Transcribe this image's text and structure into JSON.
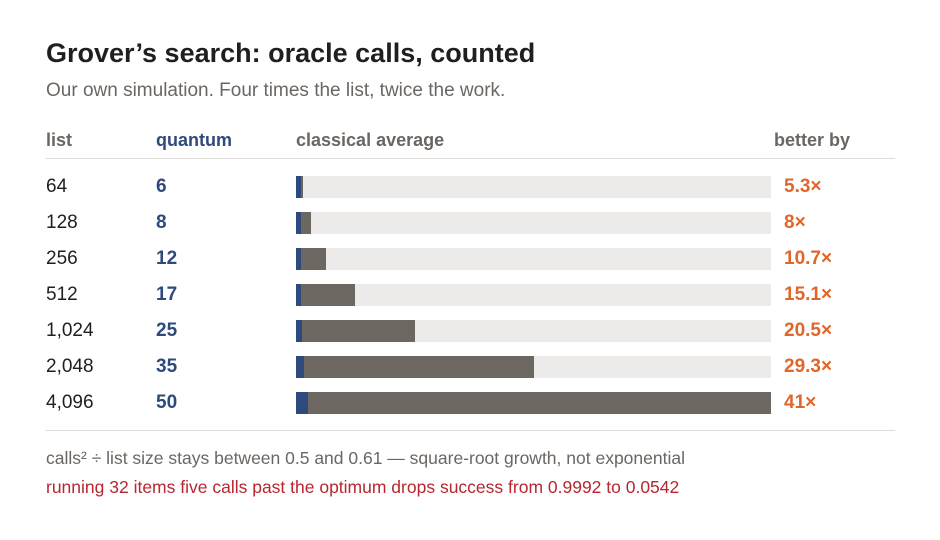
{
  "title": "Grover’s search: oracle calls, counted",
  "subtitle": "Our own simulation. Four times the list, twice the work.",
  "headers": {
    "list": "list",
    "quantum": "quantum",
    "classical": "classical average",
    "better": "better by"
  },
  "colors": {
    "quantum": "#2e4a7d",
    "classical": "#6d6762",
    "track": "#edebe9",
    "better": "#e0662a",
    "warning": "#b8262f"
  },
  "rows": [
    {
      "list": "64",
      "quantum": "6",
      "better": "5.3×"
    },
    {
      "list": "128",
      "quantum": "8",
      "better": "8×"
    },
    {
      "list": "256",
      "quantum": "12",
      "better": "10.7×"
    },
    {
      "list": "512",
      "quantum": "17",
      "better": "15.1×"
    },
    {
      "list": "1,024",
      "quantum": "25",
      "better": "20.5×"
    },
    {
      "list": "2,048",
      "quantum": "35",
      "better": "29.3×"
    },
    {
      "list": "4,096",
      "quantum": "50",
      "better": "41×"
    }
  ],
  "chart_data": {
    "type": "bar",
    "orientation": "horizontal",
    "categories": [
      64,
      128,
      256,
      512,
      1024,
      2048,
      4096
    ],
    "series": [
      {
        "name": "quantum",
        "values": [
          6,
          8,
          12,
          17,
          25,
          35,
          50
        ]
      },
      {
        "name": "classical average",
        "values": [
          32,
          64,
          128,
          256,
          512,
          1024,
          2048
        ]
      }
    ],
    "better_by": [
      5.3,
      8,
      10.7,
      15.1,
      20.5,
      29.3,
      41
    ],
    "xlim": [
      0,
      2048
    ]
  },
  "notes": {
    "ratio": "calls² ÷ list size stays between 0.5 and 0.61 — square-root growth, not exponential",
    "warning": "running 32 items five calls past the optimum drops success from 0.9992 to 0.0542"
  }
}
